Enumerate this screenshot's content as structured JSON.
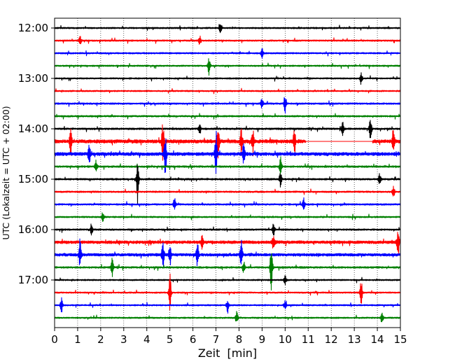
{
  "chart_data": {
    "type": "line",
    "title": "",
    "xlabel": "Zeit  [min]",
    "ylabel": "UTC (Lokalzeit = UTC + 02:00)",
    "xlim": [
      0,
      15
    ],
    "x_ticks": [
      0,
      1,
      2,
      3,
      4,
      5,
      6,
      7,
      8,
      9,
      10,
      11,
      12,
      13,
      14,
      15
    ],
    "y_tick_labels": [
      "12:00",
      "13:00",
      "14:00",
      "15:00",
      "16:00",
      "17:00"
    ],
    "grid": "vertical dotted lines at each minute",
    "legend": "none",
    "color_cycle": [
      "#000000",
      "#ff0000",
      "#0000ff",
      "#008000"
    ],
    "trace_interval_minutes": 15,
    "traces": [
      {
        "start": "12:00",
        "color": "#000000",
        "level": 0.3,
        "events": [
          [
            7.2,
            0.9
          ]
        ]
      },
      {
        "start": "12:15",
        "color": "#ff0000",
        "level": 0.3,
        "events": [
          [
            1.1,
            0.8
          ],
          [
            6.3,
            0.7
          ]
        ]
      },
      {
        "start": "12:30",
        "color": "#0000ff",
        "level": 0.3,
        "events": [
          [
            9.0,
            0.7
          ]
        ]
      },
      {
        "start": "12:45",
        "color": "#008000",
        "level": 0.28,
        "events": [
          [
            6.7,
            1.2
          ]
        ]
      },
      {
        "start": "13:00",
        "color": "#000000",
        "level": 0.28,
        "events": [
          [
            13.3,
            0.8
          ]
        ]
      },
      {
        "start": "13:15",
        "color": "#ff0000",
        "level": 0.28,
        "events": []
      },
      {
        "start": "13:30",
        "color": "#0000ff",
        "level": 0.32,
        "events": [
          [
            10.0,
            1.4
          ],
          [
            9.0,
            0.8
          ]
        ]
      },
      {
        "start": "13:45",
        "color": "#008000",
        "level": 0.32,
        "events": []
      },
      {
        "start": "14:00",
        "color": "#000000",
        "level": 0.35,
        "events": [
          [
            6.3,
            0.8
          ],
          [
            12.5,
            0.8
          ],
          [
            13.7,
            1.8
          ]
        ]
      },
      {
        "start": "14:15",
        "color": "#ff0000",
        "level": 0.7,
        "events": [
          [
            0.7,
            1.8
          ],
          [
            4.7,
            2.5
          ],
          [
            7.1,
            2.0
          ],
          [
            8.1,
            1.8
          ],
          [
            8.6,
            1.6
          ],
          [
            10.4,
            1.8
          ],
          [
            14.7,
            1.6
          ]
        ],
        "gap": [
          10.9,
          13.8
        ]
      },
      {
        "start": "14:30",
        "color": "#0000ff",
        "level": 0.65,
        "events": [
          [
            1.5,
            1.4
          ],
          [
            4.8,
            3.0
          ],
          [
            7.0,
            3.0
          ],
          [
            8.2,
            1.2
          ]
        ]
      },
      {
        "start": "14:45",
        "color": "#008000",
        "level": 0.35,
        "events": [
          [
            9.8,
            1.2
          ],
          [
            1.8,
            0.9
          ]
        ]
      },
      {
        "start": "15:00",
        "color": "#000000",
        "level": 0.35,
        "events": [
          [
            3.6,
            3.2
          ],
          [
            9.8,
            1.0
          ],
          [
            14.1,
            0.8
          ]
        ]
      },
      {
        "start": "15:15",
        "color": "#ff0000",
        "level": 0.32,
        "events": [
          [
            14.7,
            0.8
          ]
        ]
      },
      {
        "start": "15:30",
        "color": "#0000ff",
        "level": 0.32,
        "events": [
          [
            10.8,
            1.0
          ],
          [
            5.2,
            0.8
          ]
        ]
      },
      {
        "start": "15:45",
        "color": "#008000",
        "level": 0.3,
        "events": [
          [
            2.1,
            0.8
          ]
        ]
      },
      {
        "start": "16:00",
        "color": "#000000",
        "level": 0.32,
        "events": [
          [
            1.6,
            0.8
          ],
          [
            9.5,
            0.8
          ]
        ]
      },
      {
        "start": "16:15",
        "color": "#ff0000",
        "level": 0.6,
        "events": [
          [
            14.9,
            2.0
          ],
          [
            9.5,
            1.2
          ],
          [
            6.4,
            1.0
          ]
        ]
      },
      {
        "start": "16:30",
        "color": "#0000ff",
        "level": 0.55,
        "events": [
          [
            1.1,
            2.0
          ],
          [
            4.7,
            1.8
          ],
          [
            5.0,
            1.5
          ],
          [
            6.2,
            1.5
          ],
          [
            8.1,
            1.8
          ]
        ]
      },
      {
        "start": "16:45",
        "color": "#008000",
        "level": 0.35,
        "events": [
          [
            2.5,
            1.2
          ],
          [
            9.4,
            3.0
          ],
          [
            8.2,
            0.8
          ]
        ]
      },
      {
        "start": "17:00",
        "color": "#000000",
        "level": 0.28,
        "events": [
          [
            10.0,
            0.7
          ]
        ]
      },
      {
        "start": "17:15",
        "color": "#ff0000",
        "level": 0.28,
        "events": [
          [
            5.0,
            2.5
          ],
          [
            13.3,
            1.6
          ]
        ]
      },
      {
        "start": "17:30",
        "color": "#0000ff",
        "level": 0.28,
        "events": [
          [
            0.3,
            0.9
          ],
          [
            7.5,
            0.8
          ],
          [
            10.0,
            0.7
          ]
        ]
      },
      {
        "start": "17:45",
        "color": "#008000",
        "level": 0.28,
        "events": [
          [
            7.9,
            0.9
          ],
          [
            14.2,
            0.8
          ]
        ]
      }
    ]
  }
}
